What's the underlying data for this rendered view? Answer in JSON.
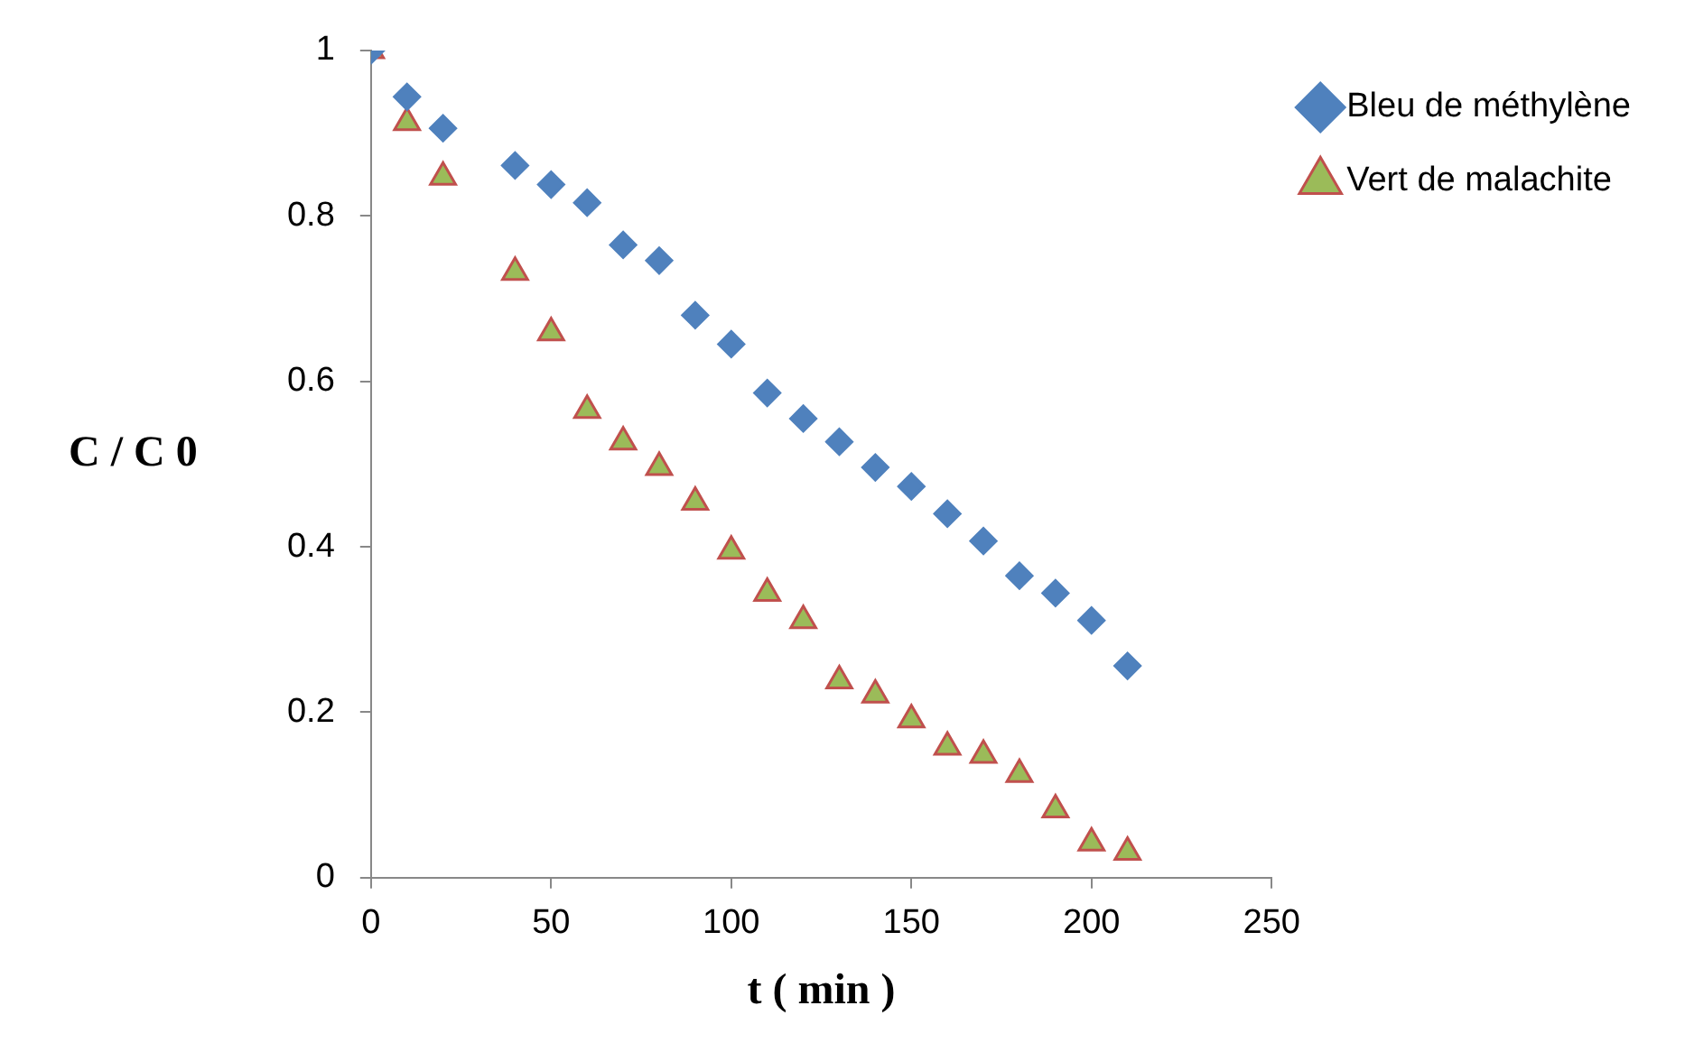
{
  "chart_data": {
    "type": "scatter",
    "xlabel": "t ( min )",
    "ylabel": "C / C 0",
    "xlim": [
      0,
      250
    ],
    "xticks": [
      0,
      50,
      100,
      150,
      200,
      250
    ],
    "ylim": [
      0,
      1
    ],
    "yticks": [
      0,
      0.2,
      0.4,
      0.6,
      0.8,
      1
    ],
    "grid": false,
    "legend": "right",
    "x": [
      0,
      10,
      20,
      40,
      50,
      60,
      70,
      80,
      90,
      100,
      110,
      120,
      130,
      140,
      150,
      160,
      170,
      180,
      190,
      200,
      210
    ],
    "series": [
      {
        "name": "Bleu de méthylène",
        "color": "#4f81bd",
        "marker": "diamond",
        "values": [
          1.0,
          0.944,
          0.906,
          0.861,
          0.838,
          0.816,
          0.765,
          0.746,
          0.68,
          0.645,
          0.586,
          0.555,
          0.527,
          0.496,
          0.473,
          0.44,
          0.407,
          0.365,
          0.344,
          0.311,
          0.256
        ]
      },
      {
        "name": "Vert de malachite",
        "color": "#9bbb59",
        "marker": "triangle",
        "values": [
          1.0,
          0.913,
          0.847,
          0.732,
          0.659,
          0.565,
          0.527,
          0.496,
          0.454,
          0.395,
          0.344,
          0.311,
          0.238,
          0.221,
          0.191,
          0.158,
          0.148,
          0.125,
          0.082,
          0.042,
          0.031
        ]
      }
    ]
  }
}
